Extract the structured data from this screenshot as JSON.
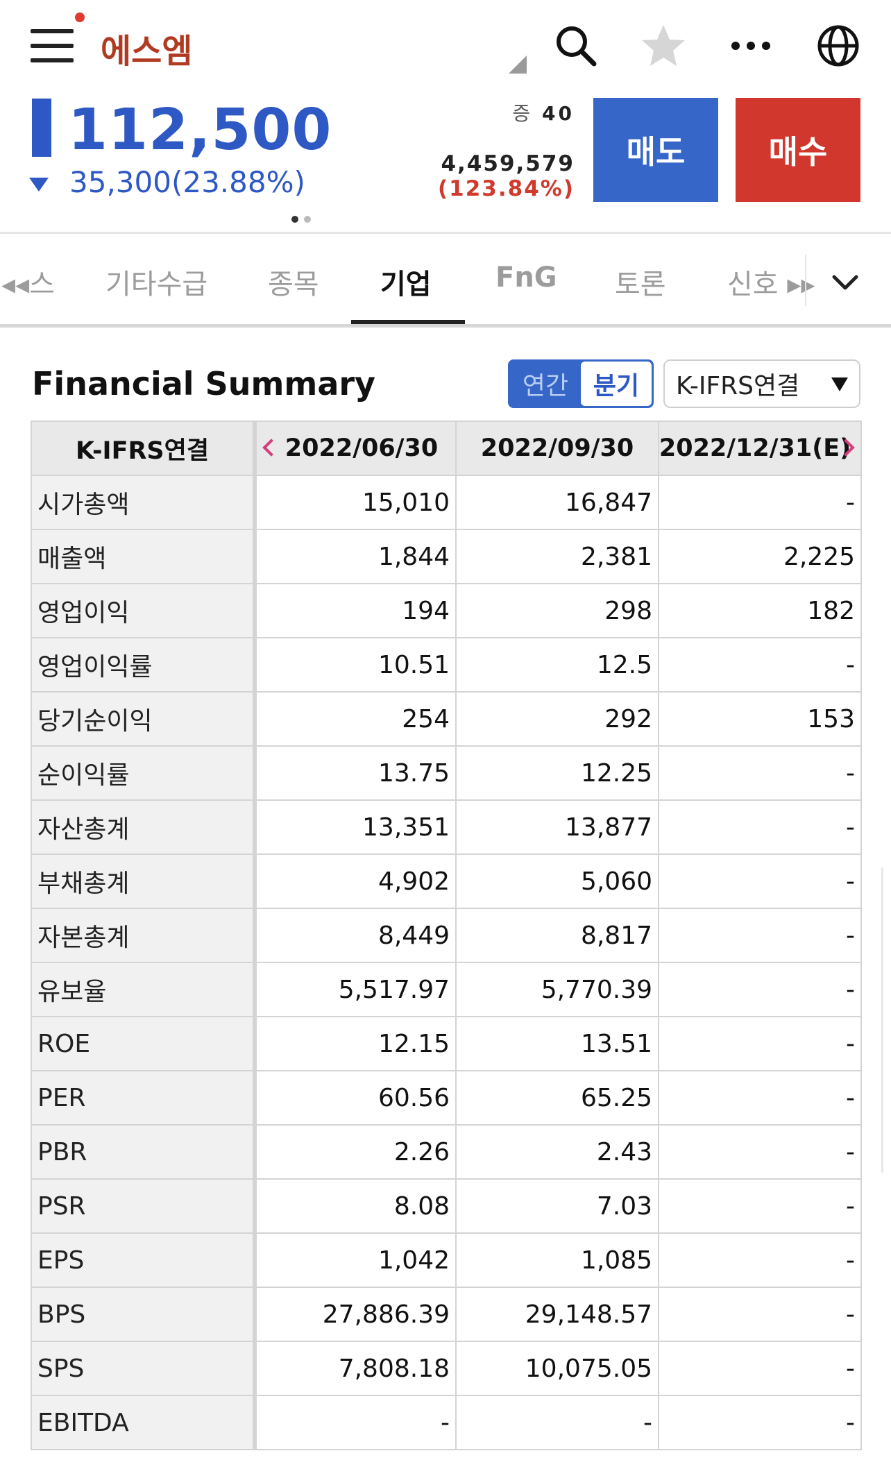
{
  "header": {
    "stock_name": "에스엠",
    "price": "112,500",
    "change": "35,300(23.88%)",
    "step_prefix": "증",
    "step_value": "40",
    "volume": "4,459,579",
    "volume_rate": "(123.84%)",
    "sell_label": "매도",
    "buy_label": "매수",
    "icons": [
      "menu-icon",
      "search-icon",
      "star-icon",
      "more-icon",
      "globe-icon"
    ],
    "colors": {
      "down": "#2e58c4",
      "up": "#d1372d",
      "name": "#b03a22"
    }
  },
  "tabs": [
    {
      "label": "◂◂스",
      "active": false
    },
    {
      "label": "기타수급",
      "active": false
    },
    {
      "label": "종목",
      "active": false
    },
    {
      "label": "기업",
      "active": true
    },
    {
      "label": "FnG",
      "active": false
    },
    {
      "label": "토론",
      "active": false
    },
    {
      "label": "신호 ▸▸",
      "active": false
    }
  ],
  "summary": {
    "title": "Financial Summary",
    "period_annual": "연간",
    "period_quarter": "분기",
    "standard": "K-IFRS연결"
  },
  "table": {
    "columns": [
      "K-IFRS연결",
      "2022/06/30",
      "2022/09/30",
      "2022/12/31(E)"
    ],
    "rows": [
      {
        "label": "시가총액",
        "values": [
          "15,010",
          "16,847",
          "-"
        ]
      },
      {
        "label": "매출액",
        "values": [
          "1,844",
          "2,381",
          "2,225"
        ]
      },
      {
        "label": "영업이익",
        "values": [
          "194",
          "298",
          "182"
        ]
      },
      {
        "label": "영업이익률",
        "values": [
          "10.51",
          "12.5",
          "-"
        ]
      },
      {
        "label": "당기순이익",
        "values": [
          "254",
          "292",
          "153"
        ]
      },
      {
        "label": "순이익률",
        "values": [
          "13.75",
          "12.25",
          "-"
        ]
      },
      {
        "label": "자산총계",
        "values": [
          "13,351",
          "13,877",
          "-"
        ]
      },
      {
        "label": "부채총계",
        "values": [
          "4,902",
          "5,060",
          "-"
        ]
      },
      {
        "label": "자본총계",
        "values": [
          "8,449",
          "8,817",
          "-"
        ]
      },
      {
        "label": "유보율",
        "values": [
          "5,517.97",
          "5,770.39",
          "-"
        ]
      },
      {
        "label": "ROE",
        "values": [
          "12.15",
          "13.51",
          "-"
        ]
      },
      {
        "label": "PER",
        "values": [
          "60.56",
          "65.25",
          "-"
        ]
      },
      {
        "label": "PBR",
        "values": [
          "2.26",
          "2.43",
          "-"
        ]
      },
      {
        "label": "PSR",
        "values": [
          "8.08",
          "7.03",
          "-"
        ]
      },
      {
        "label": "EPS",
        "values": [
          "1,042",
          "1,085",
          "-"
        ]
      },
      {
        "label": "BPS",
        "values": [
          "27,886.39",
          "29,148.57",
          "-"
        ]
      },
      {
        "label": "SPS",
        "values": [
          "7,808.18",
          "10,075.05",
          "-"
        ]
      },
      {
        "label": "EBITDA",
        "values": [
          "-",
          "-",
          "-"
        ]
      }
    ]
  }
}
